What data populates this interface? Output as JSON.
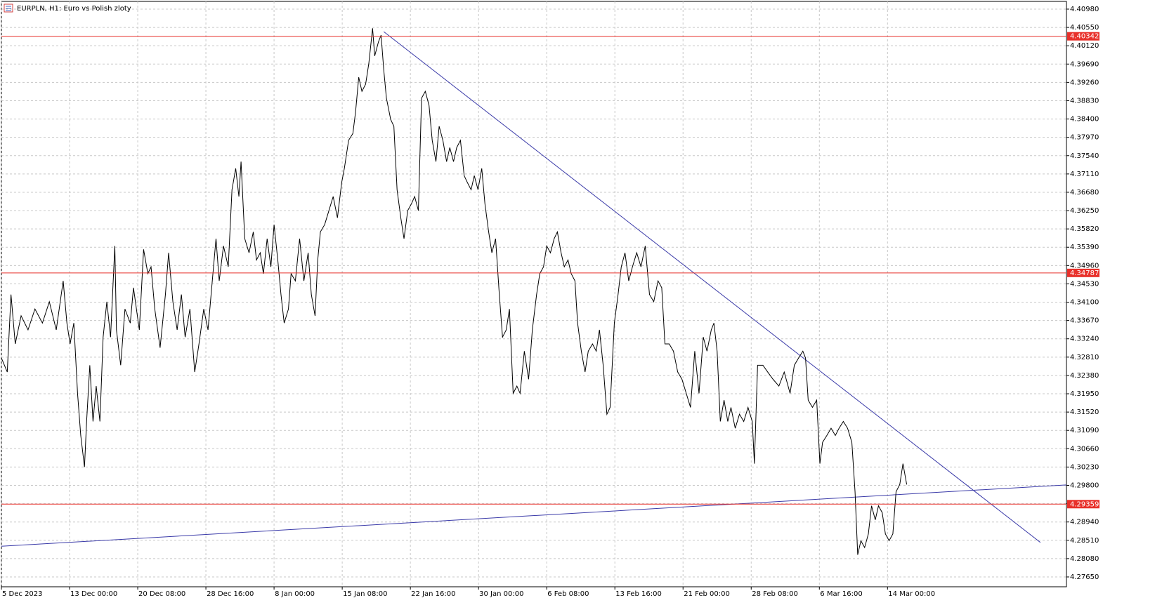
{
  "chart_data": {
    "type": "line",
    "title": "EURPLN, H1:  Euro vs Polish zloty",
    "color": "#000000",
    "grid": true,
    "xlim": [
      0,
      2000
    ],
    "ylim": [
      4.27419,
      4.41161
    ],
    "xticks": [
      {
        "value": 0,
        "label": "5 Dec 2023"
      },
      {
        "value": 128,
        "label": "13 Dec 00:00"
      },
      {
        "value": 256,
        "label": "20 Dec 08:00"
      },
      {
        "value": 384,
        "label": "28 Dec 16:00"
      },
      {
        "value": 512,
        "label": "8 Jan 00:00"
      },
      {
        "value": 640,
        "label": "15 Jan 08:00"
      },
      {
        "value": 768,
        "label": "22 Jan 16:00"
      },
      {
        "value": 896,
        "label": "30 Jan 00:00"
      },
      {
        "value": 1024,
        "label": "6 Feb 08:00"
      },
      {
        "value": 1152,
        "label": "13 Feb 16:00"
      },
      {
        "value": 1280,
        "label": "21 Feb 00:00"
      },
      {
        "value": 1408,
        "label": "28 Feb 08:00"
      },
      {
        "value": 1536,
        "label": "6 Mar 16:00"
      },
      {
        "value": 1664,
        "label": "14 Mar 00:00"
      }
    ],
    "yticks": [
      {
        "value": 4.4098,
        "label": "4.40980"
      },
      {
        "value": 4.4055,
        "label": "4.40550"
      },
      {
        "value": 4.4012,
        "label": "4.40120"
      },
      {
        "value": 4.3969,
        "label": "4.39690"
      },
      {
        "value": 4.3926,
        "label": "4.39260"
      },
      {
        "value": 4.3883,
        "label": "4.38830"
      },
      {
        "value": 4.384,
        "label": "4.38400"
      },
      {
        "value": 4.3797,
        "label": "4.37970"
      },
      {
        "value": 4.3754,
        "label": "4.37540"
      },
      {
        "value": 4.3711,
        "label": "4.37110"
      },
      {
        "value": 4.3668,
        "label": "4.36680"
      },
      {
        "value": 4.3625,
        "label": "4.36250"
      },
      {
        "value": 4.3582,
        "label": "4.35820"
      },
      {
        "value": 4.3539,
        "label": "4.35390"
      },
      {
        "value": 4.3496,
        "label": "4.34960"
      },
      {
        "value": 4.3453,
        "label": "4.34530"
      },
      {
        "value": 4.341,
        "label": "4.34100"
      },
      {
        "value": 4.3367,
        "label": "4.33670"
      },
      {
        "value": 4.3324,
        "label": "4.33240"
      },
      {
        "value": 4.3281,
        "label": "4.32810"
      },
      {
        "value": 4.3238,
        "label": "4.32380"
      },
      {
        "value": 4.3195,
        "label": "4.31950"
      },
      {
        "value": 4.3152,
        "label": "4.31520"
      },
      {
        "value": 4.3109,
        "label": "4.31090"
      },
      {
        "value": 4.3066,
        "label": "4.30660"
      },
      {
        "value": 4.3023,
        "label": "4.30230"
      },
      {
        "value": 4.298,
        "label": "4.29800"
      },
      {
        "value": 4.2937,
        "label": "4.29370"
      },
      {
        "value": 4.2894,
        "label": "4.28940"
      },
      {
        "value": 4.2851,
        "label": "4.28510"
      },
      {
        "value": 4.2808,
        "label": "4.28080"
      },
      {
        "value": 4.2765,
        "label": "4.27650"
      }
    ],
    "hlines": [
      4.40342,
      4.34787,
      4.29359
    ],
    "hline_color": "#e8302a",
    "trendlines": [
      {
        "x": [
          718,
          1951
        ],
        "y": [
          4.4045,
          4.2846
        ]
      },
      {
        "x": [
          0,
          2000
        ],
        "y": [
          4.2837,
          4.2981
        ]
      }
    ],
    "trendline_color": "#3a3aa8",
    "x": [
      0,
      11,
      18,
      26,
      37,
      50,
      63,
      77,
      90,
      103,
      116,
      123,
      129,
      136,
      143,
      149,
      156,
      160,
      166,
      172,
      178,
      185,
      191,
      198,
      205,
      213,
      216,
      224,
      232,
      242,
      248,
      259,
      267,
      275,
      281,
      288,
      298,
      308,
      314,
      322,
      330,
      338,
      345,
      354,
      363,
      371,
      380,
      388,
      396,
      403,
      409,
      417,
      426,
      433,
      440,
      446,
      450,
      457,
      465,
      473,
      479,
      486,
      492,
      499,
      506,
      512,
      519,
      525,
      531,
      539,
      544,
      552,
      560,
      568,
      576,
      582,
      589,
      594,
      599,
      607,
      615,
      623,
      631,
      639,
      644,
      652,
      660,
      665,
      671,
      677,
      684,
      690,
      697,
      701,
      708,
      713,
      718,
      723,
      731,
      737,
      743,
      750,
      756,
      763,
      770,
      776,
      783,
      789,
      796,
      803,
      809,
      816,
      822,
      829,
      836,
      842,
      849,
      855,
      862,
      869,
      875,
      882,
      888,
      895,
      902,
      908,
      915,
      921,
      928,
      935,
      941,
      948,
      954,
      961,
      968,
      974,
      982,
      990,
      997,
      1005,
      1011,
      1018,
      1024,
      1031,
      1038,
      1044,
      1051,
      1057,
      1064,
      1070,
      1077,
      1082,
      1089,
      1096,
      1102,
      1110,
      1117,
      1123,
      1130,
      1137,
      1143,
      1151,
      1158,
      1164,
      1171,
      1178,
      1185,
      1193,
      1201,
      1209,
      1217,
      1225,
      1233,
      1240,
      1246,
      1254,
      1262,
      1270,
      1278,
      1286,
      1294,
      1302,
      1310,
      1318,
      1325,
      1333,
      1338,
      1344,
      1350,
      1357,
      1364,
      1370,
      1378,
      1386,
      1394,
      1402,
      1410,
      1414,
      1420,
      1430,
      1439,
      1449,
      1460,
      1470,
      1481,
      1489,
      1497,
      1505,
      1510,
      1515,
      1523,
      1531,
      1537,
      1542,
      1550,
      1558,
      1566,
      1573,
      1581,
      1589,
      1597,
      1603,
      1608,
      1614,
      1621,
      1628,
      1634,
      1641,
      1647,
      1654,
      1660,
      1667,
      1674,
      1680,
      1687,
      1693,
      1700
    ],
    "values": [
      4.3279,
      4.3246,
      4.3428,
      4.3312,
      4.3378,
      4.3345,
      4.3394,
      4.3361,
      4.3411,
      4.3345,
      4.346,
      4.3361,
      4.3312,
      4.3361,
      4.3196,
      4.3097,
      4.3023,
      4.313,
      4.3262,
      4.313,
      4.3213,
      4.313,
      4.3328,
      4.3411,
      4.3328,
      4.3542,
      4.3345,
      4.3262,
      4.3394,
      4.3361,
      4.3444,
      4.3345,
      4.3534,
      4.3477,
      4.3493,
      4.3394,
      4.3303,
      4.3428,
      4.3526,
      4.3411,
      4.3345,
      4.3428,
      4.3328,
      4.3394,
      4.3246,
      4.3312,
      4.3394,
      4.3345,
      4.346,
      4.3559,
      4.346,
      4.3542,
      4.3493,
      4.3674,
      4.3724,
      4.3658,
      4.374,
      4.3559,
      4.3526,
      4.3575,
      4.3509,
      4.3526,
      4.3477,
      4.3559,
      4.3493,
      4.3592,
      4.3509,
      4.3428,
      4.3361,
      4.3394,
      4.3477,
      4.346,
      4.3559,
      4.346,
      4.3526,
      4.3428,
      4.3378,
      4.3509,
      4.3575,
      4.3592,
      4.3625,
      4.3658,
      4.3608,
      4.3691,
      4.3724,
      4.379,
      4.3806,
      4.3856,
      4.3938,
      4.3905,
      4.3922,
      4.3971,
      4.4053,
      4.3988,
      4.4021,
      4.4037,
      4.3955,
      4.3889,
      4.3839,
      4.3823,
      4.3674,
      4.3608,
      4.3559,
      4.3625,
      4.3641,
      4.3658,
      4.3625,
      4.3889,
      4.3905,
      4.3872,
      4.379,
      4.374,
      4.3823,
      4.379,
      4.374,
      4.3773,
      4.374,
      4.3773,
      4.379,
      4.3707,
      4.3691,
      4.3674,
      4.3707,
      4.3674,
      4.3724,
      4.3641,
      4.3575,
      4.3526,
      4.3559,
      4.3428,
      4.3328,
      4.3345,
      4.3394,
      4.3196,
      4.3213,
      4.3196,
      4.3295,
      4.3229,
      4.3345,
      4.3428,
      4.3477,
      4.3493,
      4.3542,
      4.3526,
      4.3559,
      4.3575,
      4.3526,
      4.3493,
      4.3509,
      4.3477,
      4.346,
      4.3361,
      4.3295,
      4.3246,
      4.3295,
      4.3312,
      4.3295,
      4.3345,
      4.3262,
      4.3147,
      4.3163,
      4.3361,
      4.3428,
      4.3493,
      4.3526,
      4.346,
      4.3493,
      4.3526,
      4.3493,
      4.3542,
      4.3428,
      4.3411,
      4.346,
      4.3444,
      4.3312,
      4.3312,
      4.3295,
      4.3246,
      4.3229,
      4.3196,
      4.3163,
      4.3295,
      4.3196,
      4.3328,
      4.3295,
      4.3345,
      4.3361,
      4.3295,
      4.313,
      4.318,
      4.313,
      4.3163,
      4.3114,
      4.3147,
      4.313,
      4.3163,
      4.313,
      4.3031,
      4.3262,
      4.3262,
      4.3246,
      4.3229,
      4.3213,
      4.3246,
      4.3196,
      4.3262,
      4.3279,
      4.3295,
      4.3279,
      4.318,
      4.3163,
      4.318,
      4.3031,
      4.3081,
      4.3097,
      4.3114,
      4.3097,
      4.3114,
      4.313,
      4.3114,
      4.3081,
      4.2965,
      4.2817,
      4.285,
      4.2834,
      4.2866,
      4.2932,
      4.2899,
      4.2932,
      4.2916,
      4.2866,
      4.285,
      4.2866,
      4.2965,
      4.2982,
      4.3031,
      4.2982
    ]
  }
}
